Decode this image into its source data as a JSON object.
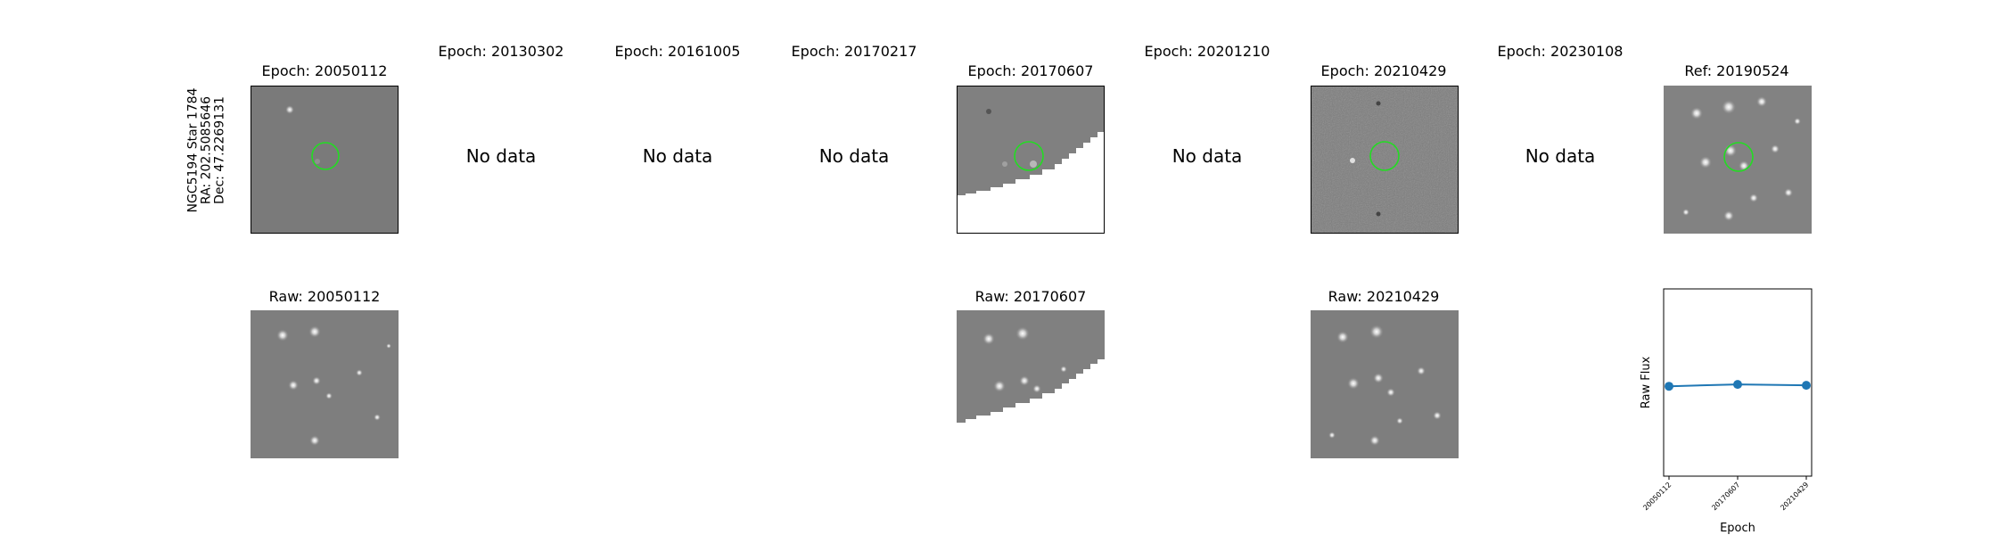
{
  "side_label": {
    "line1": "NGC5194 Star 1784",
    "line2": "RA: 202.5085646",
    "line3": "Dec: 47.2269131"
  },
  "top_row": [
    {
      "title": "Epoch: 20050112",
      "status": "image"
    },
    {
      "title": "Epoch: 20130302",
      "status": "No data"
    },
    {
      "title": "Epoch: 20161005",
      "status": "No data"
    },
    {
      "title": "Epoch: 20170217",
      "status": "No data"
    },
    {
      "title": "Epoch: 20170607",
      "status": "image"
    },
    {
      "title": "Epoch: 20201210",
      "status": "No data"
    },
    {
      "title": "Epoch: 20210429",
      "status": "image"
    },
    {
      "title": "Epoch: 20230108",
      "status": "No data"
    },
    {
      "title": "Ref: 20190524",
      "status": "image"
    }
  ],
  "bottom_row": [
    {
      "title": "Raw: 20050112"
    },
    {
      "title": "Raw: 20170607"
    },
    {
      "title": "Raw: 20210429"
    }
  ],
  "colors": {
    "aperture": "#22dd22",
    "line": "#1f77b4",
    "panel_gray": "#7f7f7f"
  },
  "chart_data": {
    "type": "line",
    "xlabel": "Epoch",
    "ylabel": "Raw Flux",
    "x": [
      "20050112",
      "20170607",
      "20210429"
    ],
    "values": [
      0.48,
      0.49,
      0.485
    ],
    "ylim": [
      0,
      1
    ],
    "grid": false
  }
}
